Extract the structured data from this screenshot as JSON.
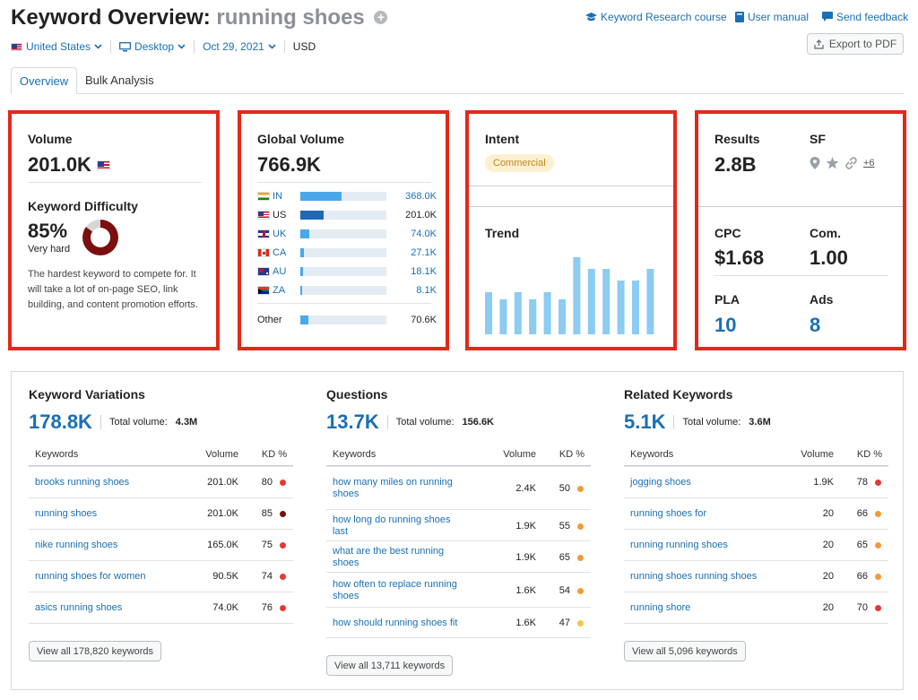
{
  "header": {
    "title_prefix": "Keyword Overview:",
    "keyword": "running shoes",
    "links": {
      "course": "Keyword Research course",
      "manual": "User manual",
      "feedback": "Send feedback"
    },
    "filters": {
      "country": "United States",
      "device": "Desktop",
      "date": "Oct 29, 2021",
      "currency": "USD"
    },
    "export_label": "Export to PDF"
  },
  "tabs": [
    "Overview",
    "Bulk Analysis"
  ],
  "volume_card": {
    "volume_label": "Volume",
    "volume_value": "201.0K",
    "kd_label": "Keyword Difficulty",
    "kd_value": "85%",
    "kd_level": "Very hard",
    "kd_percent": 85,
    "kd_color": "#7b0f10",
    "kd_description": "The hardest keyword to compete for. It will take a lot of on-page SEO, link building, and content promotion efforts."
  },
  "global_volume": {
    "label": "Global Volume",
    "value": "766.9K",
    "rows": [
      {
        "code": "IN",
        "value": "368.0K",
        "share": 0.48
      },
      {
        "code": "US",
        "value": "201.0K",
        "share": 0.27
      },
      {
        "code": "UK",
        "value": "74.0K",
        "share": 0.1
      },
      {
        "code": "CA",
        "value": "27.1K",
        "share": 0.04
      },
      {
        "code": "AU",
        "value": "18.1K",
        "share": 0.03
      },
      {
        "code": "ZA",
        "value": "8.1K",
        "share": 0.02
      }
    ],
    "other": {
      "label": "Other",
      "value": "70.6K",
      "share": 0.09
    }
  },
  "intent_card": {
    "intent_label": "Intent",
    "intent_badge": "Commercial",
    "trend_label": "Trend",
    "trend_values": [
      0.55,
      0.45,
      0.55,
      0.45,
      0.55,
      0.45,
      1.0,
      0.85,
      0.85,
      0.7,
      0.7,
      0.85
    ]
  },
  "results_card": {
    "results_label": "Results",
    "results_value": "2.8B",
    "sf_label": "SF",
    "sf_more": "+6",
    "cpc_label": "CPC",
    "cpc_value": "$1.68",
    "com_label": "Com.",
    "com_value": "1.00",
    "pla_label": "PLA",
    "pla_value": "10",
    "ads_label": "Ads",
    "ads_value": "8"
  },
  "columns": [
    {
      "title": "Keyword Variations",
      "count": "178.8K",
      "total_label": "Total volume:",
      "total_value": "4.3M",
      "headers": [
        "Keywords",
        "Volume",
        "KD %"
      ],
      "rows": [
        {
          "keyword": "brooks running shoes",
          "volume": "201.0K",
          "kd": "80",
          "color": "#e53935"
        },
        {
          "keyword": "running shoes",
          "volume": "201.0K",
          "kd": "85",
          "color": "#7b0f10"
        },
        {
          "keyword": "nike running shoes",
          "volume": "165.0K",
          "kd": "75",
          "color": "#e53935"
        },
        {
          "keyword": "running shoes for women",
          "volume": "90.5K",
          "kd": "74",
          "color": "#e53935"
        },
        {
          "keyword": "asics running shoes",
          "volume": "74.0K",
          "kd": "76",
          "color": "#e53935"
        }
      ],
      "view_all": "View all 178,820 keywords"
    },
    {
      "title": "Questions",
      "count": "13.7K",
      "total_label": "Total volume:",
      "total_value": "156.6K",
      "headers": [
        "Keywords",
        "Volume",
        "KD %"
      ],
      "rows": [
        {
          "keyword": "how many miles on running shoes",
          "volume": "2.4K",
          "kd": "50",
          "color": "#f39a3b"
        },
        {
          "keyword": "how long do running shoes last",
          "volume": "1.9K",
          "kd": "55",
          "color": "#f39a3b"
        },
        {
          "keyword": "what are the best running shoes",
          "volume": "1.9K",
          "kd": "65",
          "color": "#f39a3b"
        },
        {
          "keyword": "how often to replace running shoes",
          "volume": "1.6K",
          "kd": "54",
          "color": "#f39a3b"
        },
        {
          "keyword": "how should running shoes fit",
          "volume": "1.6K",
          "kd": "47",
          "color": "#f6c344"
        }
      ],
      "view_all": "View all 13,711 keywords"
    },
    {
      "title": "Related Keywords",
      "count": "5.1K",
      "total_label": "Total volume:",
      "total_value": "3.6M",
      "headers": [
        "Keywords",
        "Volume",
        "KD %"
      ],
      "rows": [
        {
          "keyword": "jogging shoes",
          "volume": "1.9K",
          "kd": "78",
          "color": "#e53935"
        },
        {
          "keyword": "running shoes for",
          "volume": "20",
          "kd": "66",
          "color": "#f39a3b"
        },
        {
          "keyword": "running running shoes",
          "volume": "20",
          "kd": "65",
          "color": "#f39a3b"
        },
        {
          "keyword": "running shoes running shoes",
          "volume": "20",
          "kd": "66",
          "color": "#f39a3b"
        },
        {
          "keyword": "running shore",
          "volume": "20",
          "kd": "70",
          "color": "#e53935"
        }
      ],
      "view_all": "View all 5,096 keywords"
    }
  ],
  "colors": {
    "accent": "#1a6fb5",
    "highlight_border": "#e5271b",
    "bar": "#4aa8e8"
  }
}
